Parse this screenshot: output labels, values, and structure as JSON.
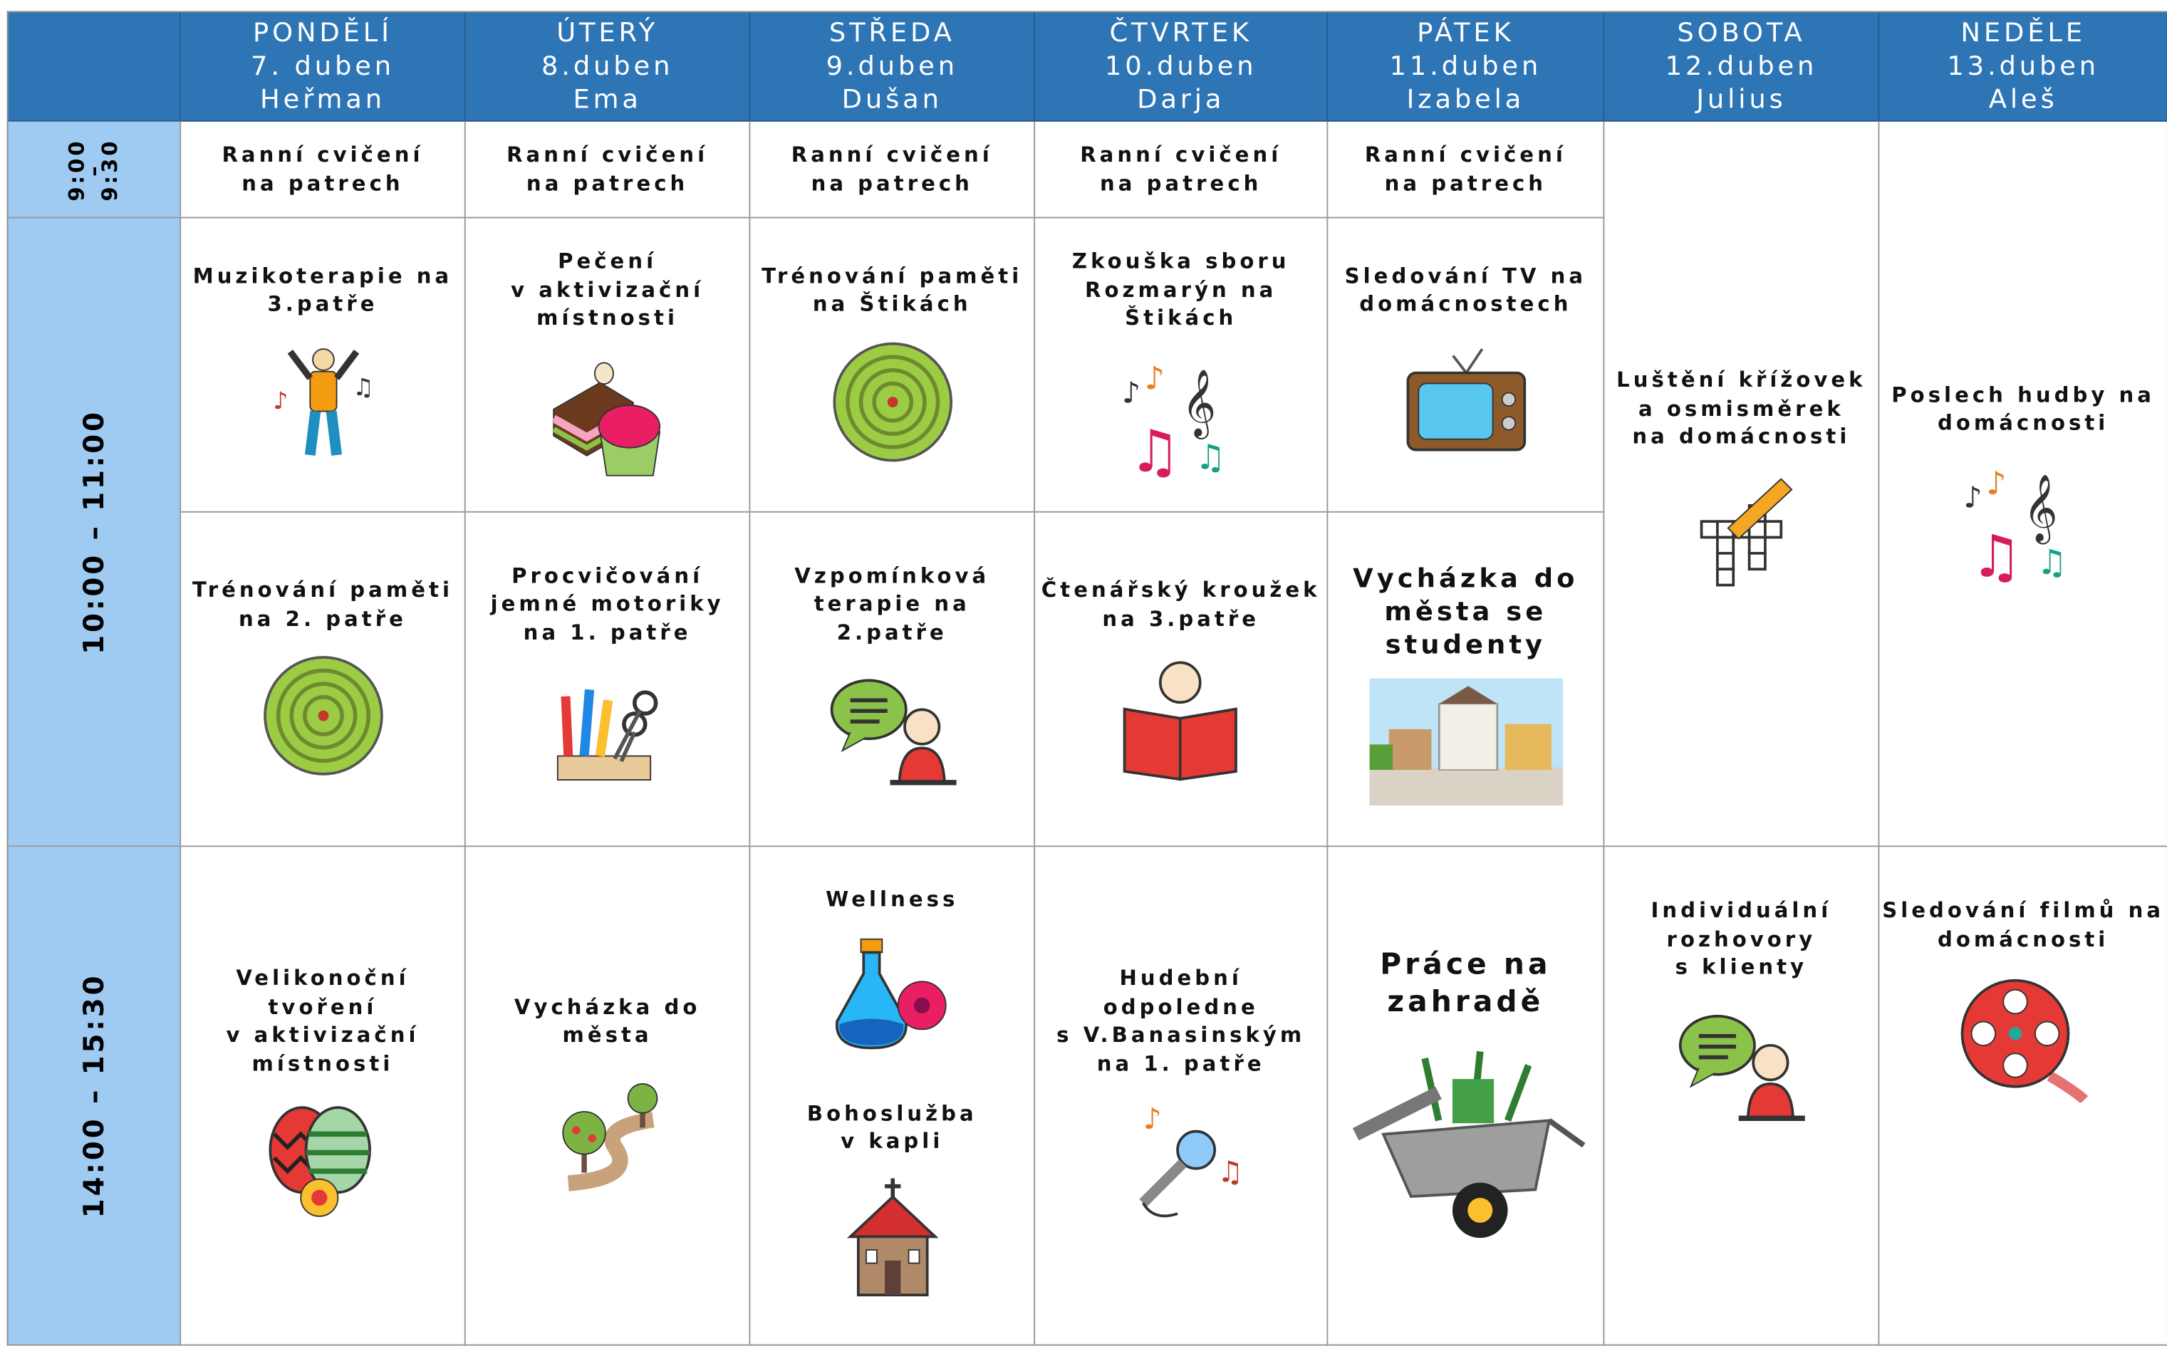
{
  "header": {
    "days": [
      {
        "name": "PONDĚLÍ",
        "date": "7. duben",
        "nameday": "Heřman"
      },
      {
        "name": "ÚTERÝ",
        "date": "8.duben",
        "nameday": "Ema"
      },
      {
        "name": "STŘEDA",
        "date": "9.duben",
        "nameday": "Dušan"
      },
      {
        "name": "ČTVRTEK",
        "date": "10.duben",
        "nameday": "Darja"
      },
      {
        "name": "PÁTEK",
        "date": "11.duben",
        "nameday": "Izabela"
      },
      {
        "name": "SOBOTA",
        "date": "12.duben",
        "nameday": "Julius"
      },
      {
        "name": "NEDĚLE",
        "date": "13.duben",
        "nameday": "Aleš"
      }
    ]
  },
  "times": [
    {
      "lines": [
        "9:00",
        "–",
        "9:30"
      ]
    },
    {
      "lines": [
        "10:00 – 11:00"
      ]
    },
    {
      "lines": [
        "14:00 – 15:30"
      ]
    }
  ],
  "cells": [
    {
      "blocks": [
        {
          "lines": [
            "Ranní cvičení",
            "na patrech"
          ]
        }
      ]
    },
    {
      "blocks": [
        {
          "lines": [
            "Muzikoterapie na",
            "3.patře"
          ]
        }
      ]
    },
    {
      "blocks": [
        {
          "lines": [
            "Trénování paměti",
            "na 2. patře"
          ]
        }
      ]
    },
    {
      "blocks": [
        {
          "lines": [
            "Velikonoční",
            "tvoření",
            "v aktivizační",
            "místnosti"
          ]
        }
      ]
    },
    {
      "blocks": [
        {
          "lines": [
            "Ranní cvičení",
            "na patrech"
          ]
        }
      ]
    },
    {
      "blocks": [
        {
          "lines": [
            "Pečení",
            "v aktivizační",
            "místnosti"
          ]
        }
      ]
    },
    {
      "blocks": [
        {
          "lines": [
            "Procvičování",
            "jemné motoriky",
            "na 1. patře"
          ]
        }
      ]
    },
    {
      "blocks": [
        {
          "lines": [
            "Vycházka do",
            "města"
          ]
        }
      ]
    },
    {
      "blocks": [
        {
          "lines": [
            "Ranní cvičení",
            "na patrech"
          ]
        }
      ]
    },
    {
      "blocks": [
        {
          "lines": [
            "Trénování paměti",
            "na Štikách"
          ]
        }
      ]
    },
    {
      "blocks": [
        {
          "lines": [
            "Vzpomínková",
            "terapie na",
            "2.patře"
          ]
        }
      ]
    },
    {
      "blocks": [
        {
          "lines": [
            "Wellness"
          ]
        },
        {
          "lines": [
            "Bohoslužba",
            "v kapli"
          ]
        }
      ]
    },
    {
      "blocks": [
        {
          "lines": [
            "Ranní cvičení",
            "na patrech"
          ]
        }
      ]
    },
    {
      "blocks": [
        {
          "lines": [
            "Zkouška sboru",
            "Rozmarýn na",
            "Štikách"
          ]
        }
      ]
    },
    {
      "blocks": [
        {
          "lines": [
            "Čtenářský kroužek",
            "na 3.patře"
          ]
        }
      ]
    },
    {
      "blocks": [
        {
          "lines": [
            "Hudební",
            "odpoledne",
            "s V.Banasinským",
            "na 1. patře"
          ]
        }
      ]
    },
    {
      "blocks": [
        {
          "lines": [
            "Ranní cvičení",
            "na patrech"
          ]
        }
      ]
    },
    {
      "blocks": [
        {
          "lines": [
            "Sledování TV na",
            "domácnostech"
          ]
        }
      ]
    },
    {
      "blocks": [
        {
          "lines": [
            "Vycházka do",
            "města se",
            "studenty"
          ]
        }
      ]
    },
    {
      "blocks": [
        {
          "lines": [
            "Práce na",
            "zahradě"
          ]
        }
      ]
    },
    {
      "blocks": [
        {
          "lines": [
            "Luštění křížovek",
            "a osmisměrek",
            "na domácnosti"
          ]
        }
      ]
    },
    {
      "blocks": [
        {
          "lines": [
            "Individuální",
            "rozhovory",
            "s klienty"
          ]
        }
      ]
    },
    {
      "blocks": [
        {
          "lines": [
            "Poslech hudby na",
            "domácnosti"
          ]
        }
      ]
    },
    {
      "blocks": [
        {
          "lines": [
            "Sledování filmů na",
            "domácnosti"
          ]
        }
      ]
    }
  ]
}
